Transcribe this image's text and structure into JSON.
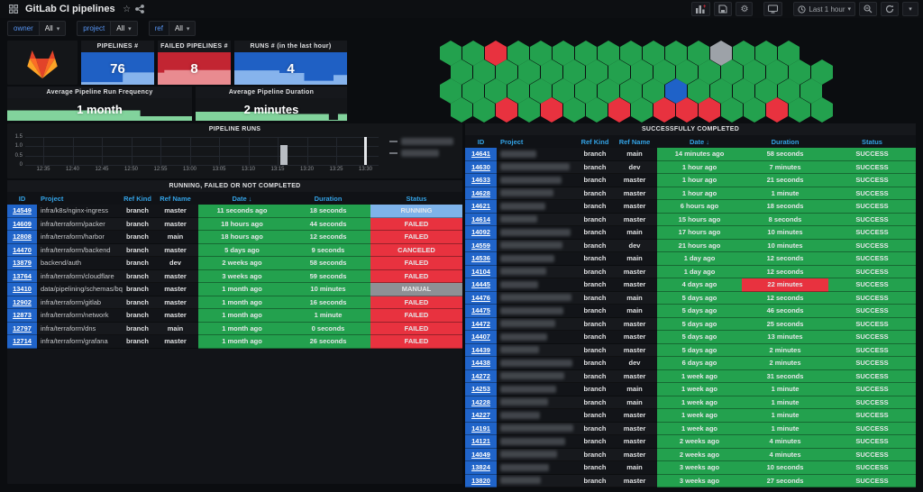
{
  "theme": {
    "green": "#23a14e",
    "light_green": "#82d39c",
    "red": "#e8323f",
    "stat_red": "#c22532",
    "light_red": "#e98b90",
    "blue": "#1f60c4",
    "light_blue": "#86b3ec",
    "link_blue": "#33a2e5",
    "id_bg": "#2064c9",
    "running_bg": "#7eb3ea",
    "manual_bg": "#8e9095"
  },
  "header": {
    "title": "GitLab CI pipelines",
    "time_range": "Last 1 hour"
  },
  "filters": [
    {
      "label": "owner",
      "value": "All"
    },
    {
      "label": "project",
      "value": "All"
    },
    {
      "label": "ref",
      "value": "All"
    }
  ],
  "stats": [
    {
      "title": "PIPELINES #",
      "value": "76",
      "variant": "blue"
    },
    {
      "title": "FAILED PIPELINES #",
      "value": "8",
      "variant": "red"
    },
    {
      "title": "RUNS # (in the last hour)",
      "value": "4",
      "variant": "blue"
    }
  ],
  "averages": [
    {
      "title": "Average Pipeline Run Frequency",
      "value": "1 month"
    },
    {
      "title": "Average Pipeline Duration",
      "value": "2 minutes"
    }
  ],
  "honeycomb": {
    "rows": [
      [
        "green",
        "green",
        "red",
        "green",
        "green",
        "green",
        "green",
        "green",
        "green",
        "green",
        "green",
        "green",
        "gray",
        "green",
        "green",
        "green"
      ],
      [
        "green",
        "green",
        "green",
        "green",
        "green",
        "green",
        "green",
        "green",
        "green",
        "green",
        "green",
        "green",
        "green",
        "green",
        "green",
        "green",
        "green"
      ],
      [
        "green",
        "green",
        "green",
        "green",
        "green",
        "green",
        "green",
        "green",
        "green",
        "green",
        "blue",
        "green",
        "green",
        "green",
        "green",
        "green",
        "green"
      ],
      [
        "green",
        "green",
        "red",
        "green",
        "red",
        "green",
        "green",
        "red",
        "green",
        "red",
        "red",
        "red",
        "green",
        "green",
        "red",
        "green",
        "green"
      ]
    ]
  },
  "pipeline_runs": {
    "title": "PIPELINE RUNS",
    "yticks": [
      "1.5",
      "1.0",
      "0.5",
      "0"
    ],
    "xticks": [
      "12:35",
      "12:40",
      "12:45",
      "12:50",
      "12:55",
      "13:00",
      "13:05",
      "13:10",
      "13:15",
      "13:20",
      "13:25",
      "13:30"
    ],
    "bars": [
      {
        "time": "13:16",
        "value": 1.05,
        "color": "#b9bdc3",
        "thin": false
      },
      {
        "time": "13:30",
        "value": 1.5,
        "color": "#e4e7ea",
        "thin": true
      }
    ],
    "legend_items": [
      {
        "redacted": true
      },
      {
        "redacted": true
      }
    ]
  },
  "chart_data": {
    "type": "bar",
    "title": "PIPELINE RUNS",
    "x": [
      "13:16",
      "13:30"
    ],
    "values": [
      1.05,
      1.5
    ],
    "xlabel": "",
    "ylabel": "",
    "xrange": [
      "12:33",
      "13:30"
    ],
    "ylim": [
      0,
      1.5
    ],
    "yticks": [
      0,
      0.5,
      1.0,
      1.5
    ],
    "grid": true,
    "legend_position": "right",
    "legend": [
      "(redacted)",
      "(redacted)"
    ]
  },
  "tables": {
    "running": {
      "title": "RUNNING, FAILED OR NOT COMPLETED",
      "columns": [
        "ID",
        "Project",
        "Ref Kind",
        "Ref Name",
        "Date ↓",
        "Duration",
        "Status"
      ],
      "rows": [
        {
          "id": "14549",
          "project": "infra/k8s/nginx-ingress",
          "ref_kind": "branch",
          "ref_name": "master",
          "date": "11 seconds ago",
          "duration": "18 seconds",
          "status": "RUNNING"
        },
        {
          "id": "14609",
          "project": "infra/terraform/packer",
          "ref_kind": "branch",
          "ref_name": "master",
          "date": "18 hours ago",
          "duration": "44 seconds",
          "status": "FAILED"
        },
        {
          "id": "12808",
          "project": "infra/terraform/harbor",
          "ref_kind": "branch",
          "ref_name": "main",
          "date": "18 hours ago",
          "duration": "12 seconds",
          "status": "FAILED"
        },
        {
          "id": "14470",
          "project": "infra/terraform/backend",
          "ref_kind": "branch",
          "ref_name": "master",
          "date": "5 days ago",
          "duration": "9 seconds",
          "status": "CANCELED"
        },
        {
          "id": "13879",
          "project": "backend/auth",
          "ref_kind": "branch",
          "ref_name": "dev",
          "date": "2 weeks ago",
          "duration": "58 seconds",
          "status": "FAILED"
        },
        {
          "id": "13764",
          "project": "infra/terraform/cloudflare",
          "ref_kind": "branch",
          "ref_name": "master",
          "date": "3 weeks ago",
          "duration": "59 seconds",
          "status": "FAILED"
        },
        {
          "id": "13410",
          "project": "data/pipelining/schemas/bq-et...",
          "ref_kind": "branch",
          "ref_name": "master",
          "date": "1 month ago",
          "duration": "10 minutes",
          "status": "MANUAL"
        },
        {
          "id": "12902",
          "project": "infra/terraform/gitlab",
          "ref_kind": "branch",
          "ref_name": "master",
          "date": "1 month ago",
          "duration": "16 seconds",
          "status": "FAILED"
        },
        {
          "id": "12873",
          "project": "infra/terraform/network",
          "ref_kind": "branch",
          "ref_name": "master",
          "date": "1 month ago",
          "duration": "1 minute",
          "status": "FAILED"
        },
        {
          "id": "12797",
          "project": "infra/terraform/dns",
          "ref_kind": "branch",
          "ref_name": "main",
          "date": "1 month ago",
          "duration": "0 seconds",
          "status": "FAILED"
        },
        {
          "id": "12714",
          "project": "infra/terraform/grafana",
          "ref_kind": "branch",
          "ref_name": "master",
          "date": "1 month ago",
          "duration": "26 seconds",
          "status": "FAILED"
        }
      ]
    },
    "success": {
      "title": "SUCCESSFULLY COMPLETED",
      "columns": [
        "ID",
        "Project",
        "Ref Kind",
        "Ref Name",
        "Date ↓",
        "Duration",
        "Status"
      ],
      "rows": [
        {
          "id": "14641",
          "project": null,
          "ref_kind": "branch",
          "ref_name": "main",
          "date": "14 minutes ago",
          "duration": "58 seconds",
          "status": "SUCCESS"
        },
        {
          "id": "14630",
          "project": null,
          "ref_kind": "branch",
          "ref_name": "dev",
          "date": "1 hour ago",
          "duration": "7 minutes",
          "status": "SUCCESS"
        },
        {
          "id": "14633",
          "project": null,
          "ref_kind": "branch",
          "ref_name": "master",
          "date": "1 hour ago",
          "duration": "21 seconds",
          "status": "SUCCESS"
        },
        {
          "id": "14628",
          "project": null,
          "ref_kind": "branch",
          "ref_name": "master",
          "date": "1 hour ago",
          "duration": "1 minute",
          "status": "SUCCESS"
        },
        {
          "id": "14621",
          "project": null,
          "ref_kind": "branch",
          "ref_name": "master",
          "date": "6 hours ago",
          "duration": "18 seconds",
          "status": "SUCCESS"
        },
        {
          "id": "14614",
          "project": null,
          "ref_kind": "branch",
          "ref_name": "master",
          "date": "15 hours ago",
          "duration": "8 seconds",
          "status": "SUCCESS"
        },
        {
          "id": "14092",
          "project": null,
          "ref_kind": "branch",
          "ref_name": "main",
          "date": "17 hours ago",
          "duration": "10 minutes",
          "status": "SUCCESS"
        },
        {
          "id": "14559",
          "project": null,
          "ref_kind": "branch",
          "ref_name": "dev",
          "date": "21 hours ago",
          "duration": "10 minutes",
          "status": "SUCCESS"
        },
        {
          "id": "14536",
          "project": null,
          "ref_kind": "branch",
          "ref_name": "main",
          "date": "1 day ago",
          "duration": "12 seconds",
          "status": "SUCCESS"
        },
        {
          "id": "14104",
          "project": null,
          "ref_kind": "branch",
          "ref_name": "master",
          "date": "1 day ago",
          "duration": "12 seconds",
          "status": "SUCCESS"
        },
        {
          "id": "14445",
          "project": null,
          "ref_kind": "branch",
          "ref_name": "master",
          "date": "4 days ago",
          "duration": "22 minutes",
          "status": "SUCCESS",
          "duration_alert": true
        },
        {
          "id": "14476",
          "project": null,
          "ref_kind": "branch",
          "ref_name": "main",
          "date": "5 days ago",
          "duration": "12 seconds",
          "status": "SUCCESS"
        },
        {
          "id": "14475",
          "project": null,
          "ref_kind": "branch",
          "ref_name": "main",
          "date": "5 days ago",
          "duration": "46 seconds",
          "status": "SUCCESS"
        },
        {
          "id": "14472",
          "project": null,
          "ref_kind": "branch",
          "ref_name": "master",
          "date": "5 days ago",
          "duration": "25 seconds",
          "status": "SUCCESS"
        },
        {
          "id": "14407",
          "project": null,
          "ref_kind": "branch",
          "ref_name": "master",
          "date": "5 days ago",
          "duration": "13 minutes",
          "status": "SUCCESS"
        },
        {
          "id": "14439",
          "project": null,
          "ref_kind": "branch",
          "ref_name": "master",
          "date": "5 days ago",
          "duration": "2 minutes",
          "status": "SUCCESS"
        },
        {
          "id": "14438",
          "project": null,
          "ref_kind": "branch",
          "ref_name": "dev",
          "date": "6 days ago",
          "duration": "2 minutes",
          "status": "SUCCESS"
        },
        {
          "id": "14272",
          "project": null,
          "ref_kind": "branch",
          "ref_name": "master",
          "date": "1 week ago",
          "duration": "31 seconds",
          "status": "SUCCESS"
        },
        {
          "id": "14253",
          "project": null,
          "ref_kind": "branch",
          "ref_name": "main",
          "date": "1 week ago",
          "duration": "1 minute",
          "status": "SUCCESS"
        },
        {
          "id": "14228",
          "project": null,
          "ref_kind": "branch",
          "ref_name": "main",
          "date": "1 week ago",
          "duration": "1 minute",
          "status": "SUCCESS"
        },
        {
          "id": "14227",
          "project": null,
          "ref_kind": "branch",
          "ref_name": "master",
          "date": "1 week ago",
          "duration": "1 minute",
          "status": "SUCCESS"
        },
        {
          "id": "14191",
          "project": null,
          "ref_kind": "branch",
          "ref_name": "master",
          "date": "1 week ago",
          "duration": "1 minute",
          "status": "SUCCESS"
        },
        {
          "id": "14121",
          "project": null,
          "ref_kind": "branch",
          "ref_name": "master",
          "date": "2 weeks ago",
          "duration": "4 minutes",
          "status": "SUCCESS"
        },
        {
          "id": "14049",
          "project": null,
          "ref_kind": "branch",
          "ref_name": "master",
          "date": "2 weeks ago",
          "duration": "4 minutes",
          "status": "SUCCESS"
        },
        {
          "id": "13824",
          "project": null,
          "ref_kind": "branch",
          "ref_name": "main",
          "date": "3 weeks ago",
          "duration": "10 seconds",
          "status": "SUCCESS"
        },
        {
          "id": "13820",
          "project": null,
          "ref_kind": "branch",
          "ref_name": "master",
          "date": "3 weeks ago",
          "duration": "27 seconds",
          "status": "SUCCESS"
        }
      ]
    }
  }
}
